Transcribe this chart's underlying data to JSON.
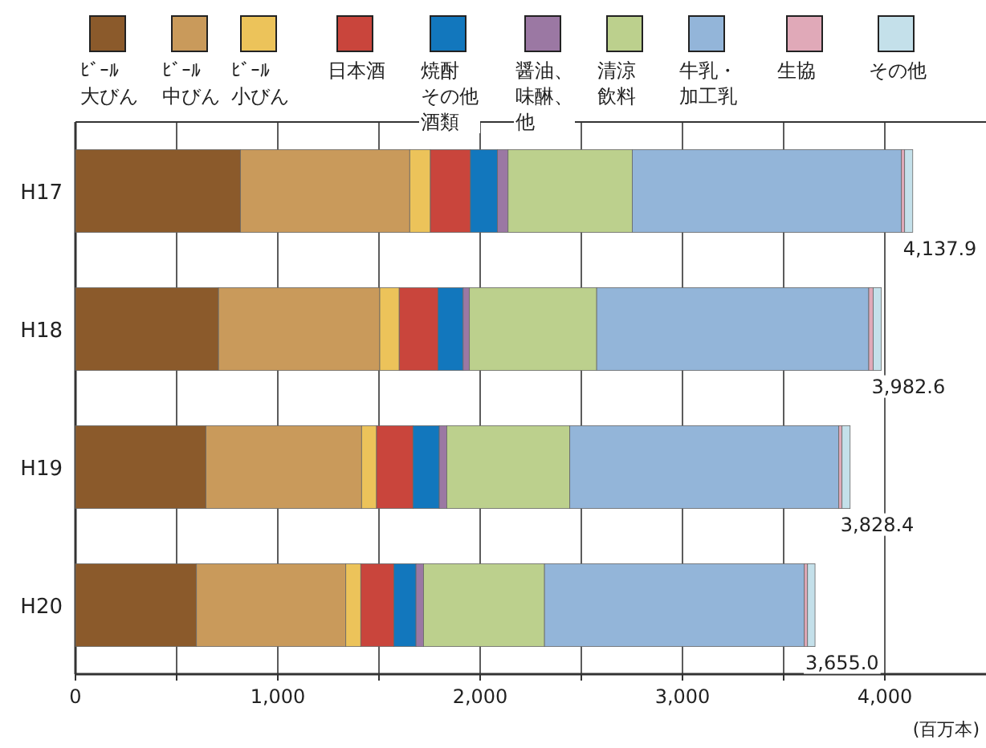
{
  "chart_data": {
    "type": "bar",
    "orientation": "horizontal",
    "stacked": true,
    "xlabel": "(百万本)",
    "legend": "top",
    "grid": "x",
    "categories": [
      "H17",
      "H18",
      "H19",
      "H20"
    ],
    "xlim": [
      0,
      4500
    ],
    "xticks": [
      0,
      {
        "value": 500,
        "label": null
      },
      {
        "value": 1000,
        "label": "1,000"
      },
      {
        "value": 1500,
        "label": null
      },
      {
        "value": 2000,
        "label": "2,000"
      },
      {
        "value": 2500,
        "label": null
      },
      {
        "value": 3000,
        "label": "3,000"
      },
      {
        "value": 3500,
        "label": null
      },
      {
        "value": 4000,
        "label": "4,000"
      }
    ],
    "series": [
      {
        "name": "ﾋﾞｰﾙ大びん",
        "color": "#8b5a2b",
        "values": [
          815,
          707,
          645,
          598
        ]
      },
      {
        "name": "ﾋﾞｰﾙ中びん",
        "color": "#c99a5b",
        "values": [
          837,
          797,
          769,
          738
        ]
      },
      {
        "name": "ﾋﾞｰﾙ小びん",
        "color": "#ecc35a",
        "values": [
          102,
          96,
          74,
          74
        ]
      },
      {
        "name": "日本酒",
        "color": "#c9453c",
        "values": [
          198,
          192,
          180,
          164
        ]
      },
      {
        "name": "焼酎その他酒類",
        "color": "#1277bd",
        "values": [
          133,
          124,
          130,
          109
        ]
      },
      {
        "name": "醤油、味醂、他",
        "color": "#9b78a3",
        "values": [
          53,
          31,
          37,
          37
        ]
      },
      {
        "name": "清涼飲料",
        "color": "#bcd08d",
        "values": [
          614,
          629,
          608,
          598
        ]
      },
      {
        "name": "牛乳・加工乳",
        "color": "#93b5d9",
        "values": [
          1329.9,
          1344.6,
          1329.4,
          1284
        ]
      },
      {
        "name": "生協",
        "color": "#e0a9b8",
        "values": [
          16,
          22,
          16,
          16
        ]
      },
      {
        "name": "その他",
        "color": "#c4e0ea",
        "values": [
          40,
          40,
          40,
          37
        ]
      }
    ],
    "totals": [
      "4,137.9",
      "3,982.6",
      "3,828.4",
      "3,655.0"
    ]
  }
}
